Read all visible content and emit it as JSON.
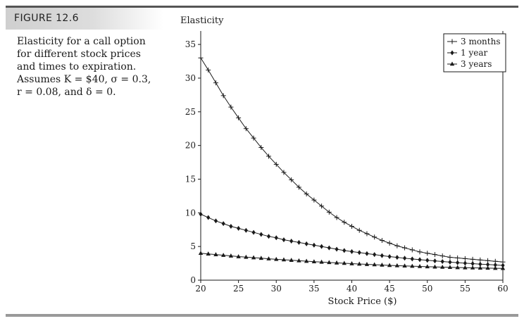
{
  "figure": {
    "label": "FIGURE 12.6",
    "caption": "Elasticity for a call option for different stock prices and times to expiration. Assumes K = $40, σ = 0.3, r = 0.08, and δ = 0."
  },
  "chart_data": {
    "type": "line",
    "title": "",
    "xlabel": "Stock Price ($)",
    "ylabel": "Elasticity",
    "xlim": [
      20,
      60
    ],
    "ylim": [
      0,
      37
    ],
    "xticks": [
      "20",
      "25",
      "30",
      "35",
      "40",
      "45",
      "50",
      "55",
      "60"
    ],
    "yticks": [
      "0",
      "5",
      "10",
      "15",
      "20",
      "25",
      "30",
      "35"
    ],
    "grid": false,
    "legend_position": "top-right",
    "x": [
      20,
      21,
      22,
      23,
      24,
      25,
      26,
      27,
      28,
      29,
      30,
      31,
      32,
      33,
      34,
      35,
      36,
      37,
      38,
      39,
      40,
      41,
      42,
      43,
      44,
      45,
      46,
      47,
      48,
      49,
      50,
      51,
      52,
      53,
      54,
      55,
      56,
      57,
      58,
      59,
      60
    ],
    "series": [
      {
        "name": "3 months",
        "marker": "plus",
        "values": [
          33.0,
          31.2,
          29.3,
          27.4,
          25.7,
          24.1,
          22.5,
          21.1,
          19.7,
          18.4,
          17.2,
          16.0,
          14.9,
          13.8,
          12.8,
          11.9,
          11.0,
          10.1,
          9.3,
          8.6,
          8.0,
          7.4,
          6.9,
          6.4,
          5.9,
          5.5,
          5.1,
          4.8,
          4.5,
          4.2,
          4.0,
          3.8,
          3.6,
          3.4,
          3.3,
          3.2,
          3.1,
          3.0,
          2.9,
          2.8,
          2.7
        ]
      },
      {
        "name": "1 year",
        "marker": "diamond",
        "values": [
          9.8,
          9.3,
          8.8,
          8.4,
          8.0,
          7.7,
          7.4,
          7.1,
          6.8,
          6.5,
          6.3,
          6.0,
          5.8,
          5.6,
          5.4,
          5.2,
          5.0,
          4.8,
          4.6,
          4.4,
          4.25,
          4.1,
          3.95,
          3.8,
          3.65,
          3.5,
          3.38,
          3.26,
          3.15,
          3.05,
          2.95,
          2.86,
          2.77,
          2.68,
          2.6,
          2.52,
          2.45,
          2.38,
          2.32,
          2.26,
          2.2
        ]
      },
      {
        "name": "3 years",
        "marker": "triangle",
        "values": [
          4.0,
          3.9,
          3.8,
          3.7,
          3.6,
          3.5,
          3.42,
          3.34,
          3.26,
          3.18,
          3.1,
          3.03,
          2.96,
          2.89,
          2.82,
          2.75,
          2.69,
          2.63,
          2.57,
          2.51,
          2.45,
          2.4,
          2.35,
          2.3,
          2.25,
          2.2,
          2.16,
          2.12,
          2.08,
          2.04,
          2.0,
          1.97,
          1.94,
          1.91,
          1.88,
          1.85,
          1.83,
          1.81,
          1.79,
          1.77,
          1.75
        ]
      }
    ]
  }
}
